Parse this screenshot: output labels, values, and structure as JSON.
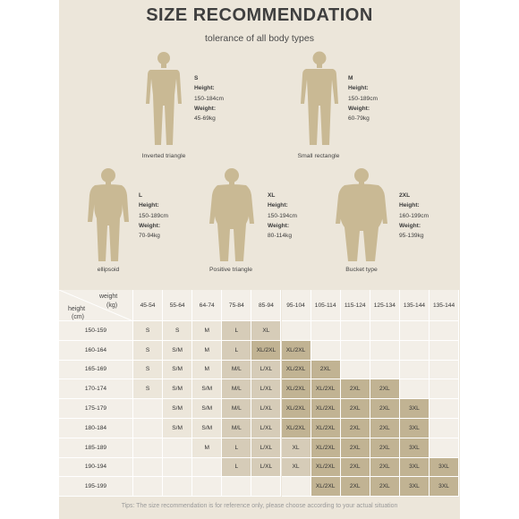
{
  "title": "SIZE RECOMMENDATION",
  "subtitle": "tolerance of all body types",
  "figures": [
    {
      "size": "S",
      "height_label": "Height:",
      "height": "150-184cm",
      "weight_label": "Weight:",
      "weight": "45-69kg",
      "caption": "Inverted triangle"
    },
    {
      "size": "M",
      "height_label": "Height:",
      "height": "150-189cm",
      "weight_label": "Weight:",
      "weight": "60-79kg",
      "caption": "Small rectangle"
    },
    {
      "size": "L",
      "height_label": "Height:",
      "height": "150-189cm",
      "weight_label": "Weight:",
      "weight": "70-94kg",
      "caption": "ellipsoid"
    },
    {
      "size": "XL",
      "height_label": "Height:",
      "height": "150-194cm",
      "weight_label": "Weight:",
      "weight": "80-114kg",
      "caption": "Positive triangle"
    },
    {
      "size": "2XL",
      "height_label": "Height:",
      "height": "160-199cm",
      "weight_label": "Weight:",
      "weight": "95-139kg",
      "caption": "Bucket type"
    }
  ],
  "table": {
    "corner_weight": "weight",
    "corner_weight_unit": "(kg)",
    "corner_height": "height",
    "corner_height_unit": "(cm)",
    "weights": [
      "45-54",
      "55-64",
      "64-74",
      "75-84",
      "85-94",
      "95-104",
      "105-114",
      "115-124",
      "125-134",
      "135-144",
      "135-144"
    ],
    "heights": [
      "150-159",
      "160-164",
      "165-169",
      "170-174",
      "175-179",
      "180-184",
      "185-189",
      "190-194",
      "195-199"
    ],
    "cells": [
      [
        "S",
        "S",
        "M",
        "L",
        "XL",
        "",
        "",
        "",
        "",
        "",
        ""
      ],
      [
        "S",
        "S/M",
        "M",
        "L",
        "XL/2XL",
        "XL/2XL",
        "",
        "",
        "",
        "",
        ""
      ],
      [
        "S",
        "S/M",
        "M",
        "M/L",
        "L/XL",
        "XL/2XL",
        "2XL",
        "",
        "",
        "",
        ""
      ],
      [
        "S",
        "S/M",
        "S/M",
        "M/L",
        "L/XL",
        "XL/2XL",
        "XL/2XL",
        "2XL",
        "2XL",
        "",
        ""
      ],
      [
        "",
        "S/M",
        "S/M",
        "M/L",
        "L/XL",
        "XL/2XL",
        "XL/2XL",
        "2XL",
        "2XL",
        "3XL",
        ""
      ],
      [
        "",
        "S/M",
        "S/M",
        "M/L",
        "L/XL",
        "XL/2XL",
        "XL/2XL",
        "2XL",
        "2XL",
        "3XL",
        ""
      ],
      [
        "",
        "",
        "M",
        "L",
        "L/XL",
        "XL",
        "XL/2XL",
        "2XL",
        "2XL",
        "3XL",
        ""
      ],
      [
        "",
        "",
        "",
        "L",
        "L/XL",
        "XL",
        "XL/2XL",
        "2XL",
        "2XL",
        "3XL",
        "3XL"
      ],
      [
        "",
        "",
        "",
        "",
        "",
        "",
        "XL/2XL",
        "2XL",
        "2XL",
        "3XL",
        "3XL"
      ]
    ],
    "colors": {
      "light": "#ece6da",
      "mid": "#d6ccb8",
      "dark": "#c1b393",
      "empty": "#f3efe8"
    }
  },
  "tip": "Tips: The size recommendation is for reference only, please choose according to your actual situation",
  "figure_color": "#c9b994"
}
